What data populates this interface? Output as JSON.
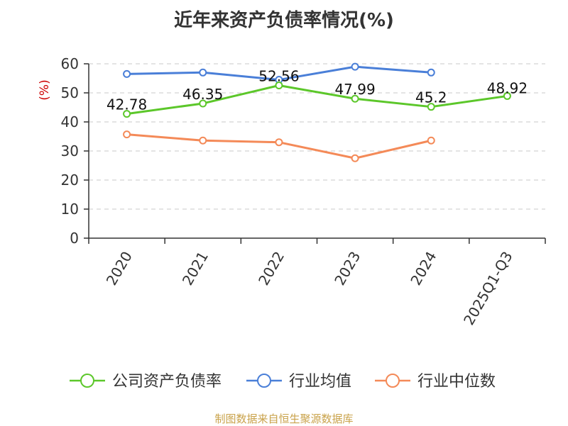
{
  "chart_data": {
    "type": "line",
    "title": "近年来资产负债率情况(%)",
    "ylabel": "(%)",
    "xlabel": "",
    "categories": [
      "2020",
      "2021",
      "2022",
      "2023",
      "2024",
      "2025Q1-Q3"
    ],
    "ylim": [
      0,
      60
    ],
    "yticks": [
      0,
      10,
      20,
      30,
      40,
      50,
      60
    ],
    "grid": true,
    "legend_position": "bottom",
    "series": [
      {
        "name": "公司资产负债率",
        "color": "#5cc72a",
        "labeled": true,
        "values": [
          42.78,
          46.35,
          52.56,
          47.99,
          45.2,
          48.92
        ]
      },
      {
        "name": "行业均值",
        "color": "#4a7fd8",
        "labeled": false,
        "values": [
          56.5,
          57.0,
          54.5,
          59.0,
          57.0,
          null
        ]
      },
      {
        "name": "行业中位数",
        "color": "#f48a58",
        "labeled": false,
        "values": [
          35.7,
          33.6,
          33.0,
          27.5,
          33.6,
          null
        ]
      }
    ],
    "data_labels": [
      "42.78",
      "46.35",
      "52.56",
      "47.99",
      "45.2",
      "48.92"
    ]
  },
  "source": "制图数据来自恒生聚源数据库"
}
